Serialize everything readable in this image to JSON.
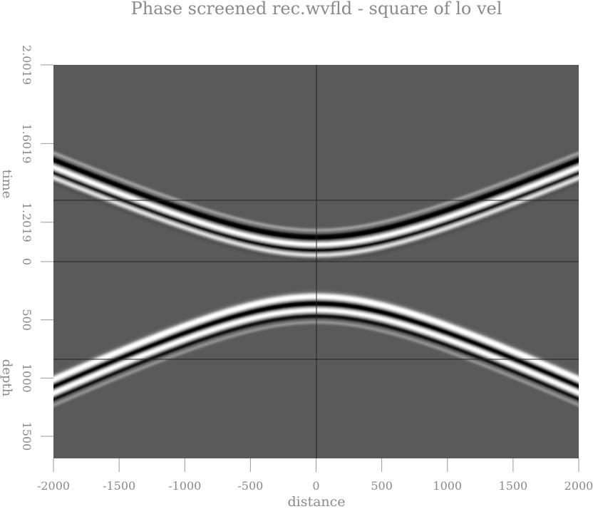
{
  "chart_data": {
    "type": "heatmap",
    "title": "Phase screened rec.wvfld - square of lo vel",
    "xlabel": "distance",
    "xlim": [
      -2000,
      2000
    ],
    "xticks": [
      "-2000",
      "-1500",
      "-1000",
      "-500",
      "0",
      "500",
      "1000",
      "1500",
      "2000"
    ],
    "panels": [
      {
        "ylabel": "time",
        "yticks": [
          "2.0019",
          "1.6019",
          "1.2019"
        ],
        "ylim": [
          2.0019,
          1.0019
        ]
      },
      {
        "ylabel": "depth",
        "yticks": [
          "0",
          "500",
          "1000",
          "1500"
        ],
        "ylim": [
          0,
          1690
        ]
      }
    ],
    "grid": true,
    "colormap": "grayscale",
    "background": "#5a5a5a"
  }
}
